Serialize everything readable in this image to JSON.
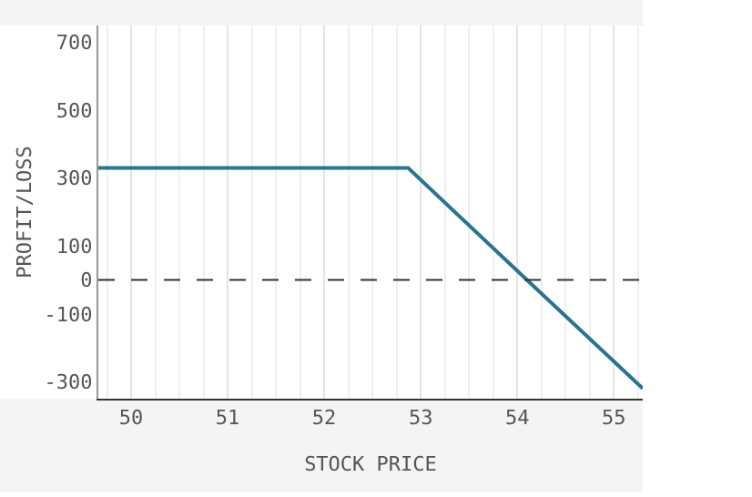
{
  "chart_data": {
    "type": "line",
    "xlabel": "STOCK PRICE",
    "ylabel": "PROFIT/LOSS",
    "x": [
      49.66,
      52.87,
      54.1,
      55.3
    ],
    "series": [
      {
        "color": "#2a7490",
        "values": [
          330,
          330,
          0,
          -320
        ]
      }
    ],
    "xlim": [
      49.66,
      55.3
    ],
    "xticks": [
      50,
      51,
      52,
      53,
      54,
      55
    ],
    "ylim": [
      -350,
      750
    ],
    "yticks": [
      -300,
      -100,
      0,
      100,
      300,
      500,
      700
    ],
    "ref_lines": [
      {
        "axis": "y",
        "value": 0,
        "color": "#333333",
        "line_style": "dashed"
      }
    ],
    "grid": "x",
    "line_style": "solid"
  }
}
